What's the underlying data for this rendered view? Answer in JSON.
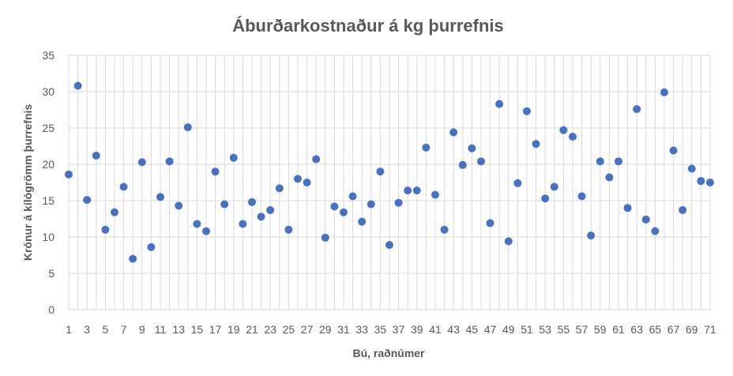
{
  "chart_data": {
    "type": "scatter",
    "title": "Áburðarkostnaður á kg þurrefnis",
    "xlabel": "Bú, raðnúmer",
    "ylabel": "Krónur á kílógrömm þurrefnis",
    "xlim": [
      1,
      71
    ],
    "ylim": [
      0,
      35
    ],
    "y_ticks": [
      "0",
      "5",
      "10",
      "15",
      "20",
      "25",
      "30",
      "35"
    ],
    "x_ticks": [
      "1",
      "3",
      "5",
      "7",
      "9",
      "11",
      "13",
      "15",
      "17",
      "19",
      "21",
      "23",
      "25",
      "27",
      "29",
      "31",
      "33",
      "35",
      "37",
      "39",
      "41",
      "43",
      "45",
      "47",
      "49",
      "51",
      "53",
      "55",
      "57",
      "59",
      "61",
      "63",
      "65",
      "67",
      "69",
      "71"
    ],
    "grid": "vertical and horizontal",
    "marker_color": "#4472c4",
    "series": [
      {
        "x": [
          1,
          2,
          3,
          4,
          5,
          6,
          7,
          8,
          9,
          10,
          11,
          12,
          13,
          14,
          15,
          16,
          17,
          18,
          19,
          20,
          21,
          22,
          23,
          24,
          25,
          26,
          27,
          28,
          29,
          30,
          31,
          32,
          33,
          34,
          35,
          36,
          37,
          38,
          39,
          40,
          41,
          42,
          43,
          44,
          45,
          46,
          47,
          48,
          49,
          50,
          51,
          52,
          53,
          54,
          55,
          56,
          57,
          58,
          59,
          60,
          61,
          62,
          63,
          64,
          65,
          66,
          67,
          68,
          69,
          70,
          71
        ],
        "y": [
          18.6,
          30.8,
          15.1,
          21.2,
          11.0,
          13.4,
          16.9,
          7.0,
          20.3,
          8.6,
          15.5,
          20.4,
          14.3,
          25.1,
          11.8,
          10.8,
          19.0,
          14.5,
          20.9,
          11.8,
          14.8,
          12.8,
          13.7,
          16.7,
          11.0,
          18.0,
          17.5,
          20.7,
          9.9,
          14.2,
          13.4,
          15.6,
          12.1,
          14.5,
          19.0,
          8.9,
          14.7,
          16.4,
          16.4,
          22.3,
          15.8,
          11.0,
          24.4,
          19.9,
          22.2,
          20.4,
          11.9,
          28.3,
          9.4,
          17.4,
          27.3,
          22.8,
          15.3,
          16.9,
          24.7,
          23.8,
          15.6,
          10.2,
          20.4,
          18.2,
          20.4,
          14.0,
          27.6,
          12.4,
          10.8,
          29.9,
          21.9,
          13.7,
          19.4,
          17.7,
          17.5
        ]
      }
    ]
  }
}
